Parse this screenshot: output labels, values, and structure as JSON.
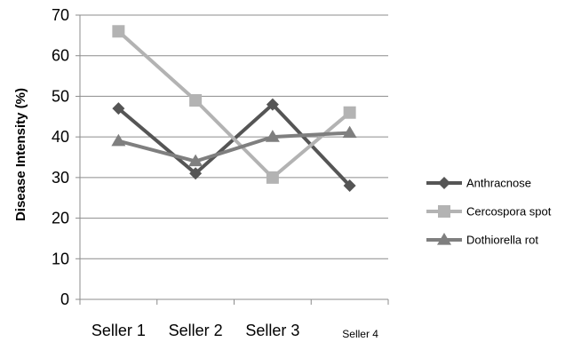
{
  "chart_data": {
    "type": "line",
    "title": "",
    "xlabel": "",
    "ylabel": "Disease Intensity (%)",
    "categories": [
      "Seller 1",
      "Seller 2",
      "Seller 3",
      "Seller 4"
    ],
    "ylim": [
      0,
      70
    ],
    "y_ticks": [
      0,
      10,
      20,
      30,
      40,
      50,
      60,
      70
    ],
    "grid": "horizontal",
    "legend_position": "right",
    "series": [
      {
        "name": "Anthracnose",
        "values": [
          47,
          31,
          48,
          28
        ],
        "color": "#555555",
        "marker": "diamond"
      },
      {
        "name": "Cercospora spot",
        "values": [
          66,
          49,
          30,
          46
        ],
        "color": "#b3b3b3",
        "marker": "square"
      },
      {
        "name": "Dothiorella rot",
        "values": [
          39,
          34,
          40,
          41
        ],
        "color": "#7f7f7f",
        "marker": "triangle"
      }
    ]
  }
}
